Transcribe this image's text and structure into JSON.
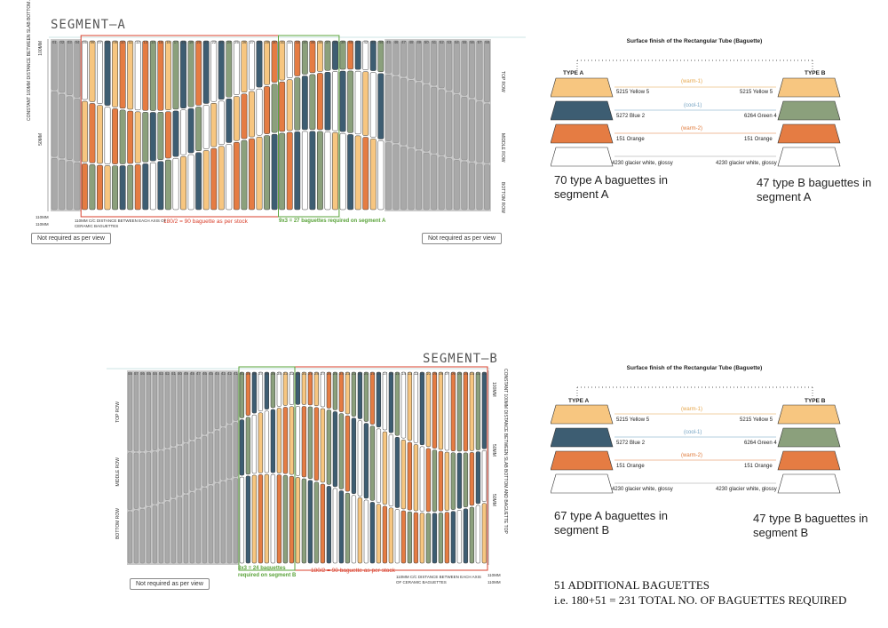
{
  "segment_a": {
    "title": "SEGMENT—A",
    "left_dim_note": "CONSTANT 100MM DISTANCE BETWEEN SLAB BOTTOM AND BAGUETTE TOP",
    "dim_100": "100MM",
    "dim_50": "50MM",
    "dim_110_a": "110MM",
    "dim_110_b": "110MM",
    "cc_note": "110MM C/C DISTANCE BETWEEN EACH AXIS OF CERAMIC BAGUETTES",
    "stock_note": "180/2 = 90 baguette as per stock",
    "green_note": "9x3 = 27 baguettes required on segment A",
    "not_required_left": "Not required as per view",
    "not_required_right": "Not required as per view",
    "row_top": "TOP ROW",
    "row_middle": "MIDDLE ROW",
    "row_bottom": "BOTTOM ROW",
    "count_a": "70 type A baguettes in segment A",
    "count_b": "47 type B baguettes in segment A"
  },
  "segment_b": {
    "title": "SEGMENT—B",
    "right_dim_note": "CONSTANT 100MM DISTANCE BETWEEN SLAB BOTTOM AND BAGUETTE TOP",
    "dim_100": "100MM",
    "dim_50a": "50MM",
    "dim_50b": "50MM",
    "dim_110_a": "110MM",
    "dim_110_b": "110MM",
    "cc_note": "110MM C/C DISTANCE BETWEEN EACH AXIS OF CERAMIC BAGUETTES",
    "stock_note": "180/2 = 90 baguette as per stock",
    "green_note_1": "8x3 = 24 baguettes",
    "green_note_2": "required on segment B",
    "not_required": "Not required as per view",
    "row_top": "TOP ROW",
    "row_middle": "MIDDLE ROW",
    "row_bottom": "BOTTOM ROW",
    "count_a": "67 type A baguettes in segment B",
    "count_b": "47 type B baguettes in segment B"
  },
  "legend": {
    "title": "Surface finish of the Rectangular Tube (Baguette)",
    "type_a": "TYPE A",
    "type_b": "TYPE B",
    "rows": [
      {
        "left": "5215 Yellow 5",
        "mid": "(warm-1)",
        "right": "5215 Yellow 5",
        "color_a": "#f7c680",
        "color_b": "#f7c680",
        "mid_color": "#e6a64a"
      },
      {
        "left": "5272 Blue 2",
        "mid": "(cool-1)",
        "right": "6264 Green 4",
        "color_a": "#3d5d72",
        "color_b": "#8ba07c",
        "mid_color": "#6f9fc0"
      },
      {
        "left": "151 Orange",
        "mid": "(warm-2)",
        "right": "151 Orange",
        "color_a": "#e57c43",
        "color_b": "#e57c43",
        "mid_color": "#e07a3a"
      },
      {
        "left": "4230 glacier white, glossy",
        "mid": "",
        "right": "4230 glacier white, glossy",
        "color_a": "#ffffff",
        "color_b": "#ffffff",
        "mid_color": "#999"
      }
    ]
  },
  "colors": {
    "stock_red": "#d9412e",
    "segment_green": "#5aa33a",
    "grey_zone": "#c9c9c9",
    "yellow": "#f7c680",
    "blue": "#3d5d72",
    "green": "#8ba07c",
    "orange": "#e57c43",
    "white": "#ffffff"
  },
  "footer": {
    "line1": "51 ADDITIONAL BAGUETTES",
    "line2": "i.e. 180+51 = 231 TOTAL NO. OF BAGUETTES REQUIRED"
  },
  "numbering": {
    "seg_a_first": 1,
    "seg_a_last": 58,
    "seg_b_first": 1,
    "seg_b_last": 58
  }
}
